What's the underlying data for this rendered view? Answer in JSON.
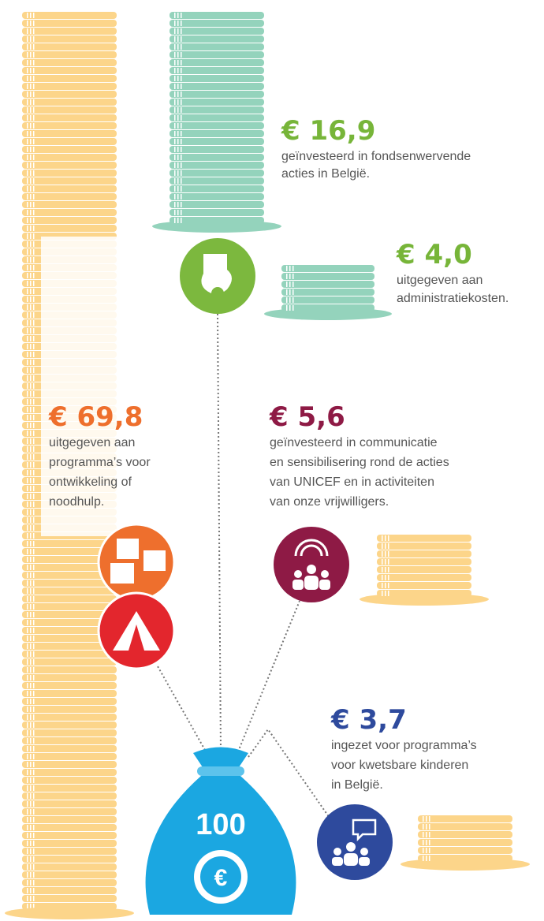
{
  "bag": {
    "label": "100",
    "symbol": "€"
  },
  "items": [
    {
      "amount": "€ 16,9",
      "lines": [
        "geïnvesteerd in fondsenwervende",
        "acties in België."
      ]
    },
    {
      "amount": "€ 4,0",
      "lines": [
        "uitgegeven aan",
        "administratiekosten."
      ]
    },
    {
      "amount": "€ 69,8",
      "lines": [
        "uitgegeven aan",
        "programma’s voor",
        "ontwikkeling of",
        "noodhulp."
      ]
    },
    {
      "amount": "€ 5,6",
      "lines": [
        "geïnvesteerd in communicatie",
        "en sensibilisering rond de acties",
        "van UNICEF en in activiteiten",
        "van onze vrijwilligers."
      ]
    },
    {
      "amount": "€ 3,7",
      "lines": [
        "ingezet voor programma’s",
        "voor kwetsbare kinderen",
        "in België."
      ]
    }
  ]
}
